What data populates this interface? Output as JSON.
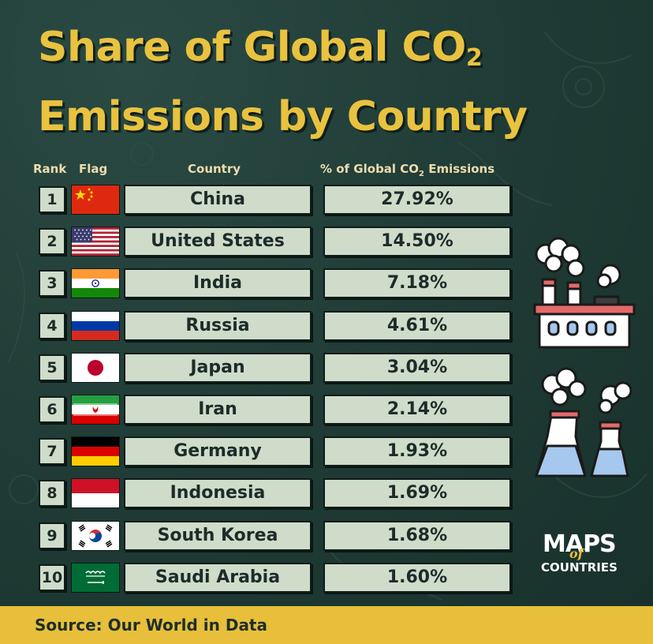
{
  "title_line1": "Share of Global CO",
  "title_line1_sub": "2",
  "title_line2": "Emissions by Country",
  "headers": {
    "rank": "Rank",
    "flag": "Flag",
    "country": "Country",
    "value": "% of Global CO",
    "value_sub": "2",
    "value_tail": " Emissions"
  },
  "chart_data": {
    "type": "table",
    "title": "Share of Global CO2 Emissions by Country",
    "columns": [
      "Rank",
      "Flag",
      "Country",
      "% of Global CO2 Emissions"
    ],
    "rows": [
      {
        "rank": "1",
        "flag": "china-flag",
        "country": "China",
        "value": 27.92,
        "value_label": "27.92%"
      },
      {
        "rank": "2",
        "flag": "united-states-flag",
        "country": "United States",
        "value": 14.5,
        "value_label": "14.50%"
      },
      {
        "rank": "3",
        "flag": "india-flag",
        "country": "India",
        "value": 7.18,
        "value_label": "7.18%"
      },
      {
        "rank": "4",
        "flag": "russia-flag",
        "country": "Russia",
        "value": 4.61,
        "value_label": "4.61%"
      },
      {
        "rank": "5",
        "flag": "japan-flag",
        "country": "Japan",
        "value": 3.04,
        "value_label": "3.04%"
      },
      {
        "rank": "6",
        "flag": "iran-flag",
        "country": "Iran",
        "value": 2.14,
        "value_label": "2.14%"
      },
      {
        "rank": "7",
        "flag": "germany-flag",
        "country": "Germany",
        "value": 1.93,
        "value_label": "1.93%"
      },
      {
        "rank": "8",
        "flag": "indonesia-flag",
        "country": "Indonesia",
        "value": 1.69,
        "value_label": "1.69%"
      },
      {
        "rank": "9",
        "flag": "south-korea-flag",
        "country": "South Korea",
        "value": 1.68,
        "value_label": "1.68%"
      },
      {
        "rank": "10",
        "flag": "saudi-arabia-flag",
        "country": "Saudi Arabia",
        "value": 1.6,
        "value_label": "1.60%"
      }
    ]
  },
  "source": "Source: Our World in Data",
  "logo": {
    "line1": "MAPS",
    "line2": "of",
    "line3": "COUNTRIES"
  },
  "icons": [
    "factory-icon",
    "power-plant-icon"
  ],
  "colors": {
    "background": "#1f3b35",
    "title": "#e9c23f",
    "cell": "#cfdcca",
    "source_bar": "#e7bf3a"
  }
}
